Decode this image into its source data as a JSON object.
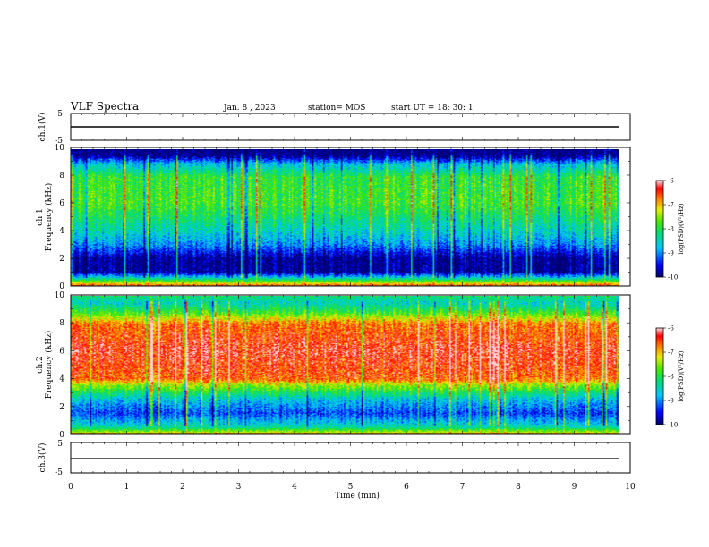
{
  "header": {
    "title": "VLF Spectra",
    "date": "Jan. 8 , 2023",
    "station": "station= MOS",
    "start": "start UT = 18: 30: 1"
  },
  "chart_data": [
    {
      "type": "line",
      "ylabel": "ch.1(V)",
      "yticks": [
        "5",
        "-5"
      ],
      "ylim": [
        -5,
        5
      ],
      "xlim": [
        0,
        10
      ],
      "series": [
        {
          "values": [
            0,
            0
          ]
        }
      ]
    },
    {
      "type": "heatmap",
      "ylabel": "ch.1\nFrequency (kHz)",
      "ylim": [
        0,
        10
      ],
      "yticks": [
        "10",
        "8",
        "6",
        "4",
        "2",
        "0"
      ],
      "xlim": [
        0,
        10
      ],
      "data_end_min": 9.8,
      "colorbar": {
        "label": "log(PSD)(V²/Hz)",
        "range": [
          -10,
          -6
        ],
        "ticks": [
          "-6",
          "-7",
          "-8",
          "-9",
          "-10"
        ]
      },
      "band_profile": [
        {
          "freq_khz": 0.0,
          "level": -6.6
        },
        {
          "freq_khz": 0.4,
          "level": -8.0
        },
        {
          "freq_khz": 1.0,
          "level": -9.9
        },
        {
          "freq_khz": 2.0,
          "level": -9.9
        },
        {
          "freq_khz": 3.0,
          "level": -9.0
        },
        {
          "freq_khz": 4.0,
          "level": -8.5
        },
        {
          "freq_khz": 6.0,
          "level": -7.8
        },
        {
          "freq_khz": 8.0,
          "level": -7.9
        },
        {
          "freq_khz": 9.0,
          "level": -8.8
        },
        {
          "freq_khz": 9.5,
          "level": -9.9
        },
        {
          "freq_khz": 10.0,
          "level": -10.0
        }
      ]
    },
    {
      "type": "heatmap",
      "ylabel": "ch.2\nFrequency (kHz)",
      "ylim": [
        0,
        10
      ],
      "yticks": [
        "10",
        "8",
        "6",
        "4",
        "2",
        "0"
      ],
      "xlim": [
        0,
        10
      ],
      "data_end_min": 9.8,
      "colorbar": {
        "label": "log(PSD)(V²/Hz)",
        "range": [
          -10,
          -6
        ],
        "ticks": [
          "-6",
          "-7",
          "-8",
          "-9",
          "-10"
        ]
      },
      "band_profile": [
        {
          "freq_khz": 0.0,
          "level": -7.0
        },
        {
          "freq_khz": 0.5,
          "level": -8.4
        },
        {
          "freq_khz": 1.5,
          "level": -9.3
        },
        {
          "freq_khz": 2.5,
          "level": -8.7
        },
        {
          "freq_khz": 3.5,
          "level": -7.5
        },
        {
          "freq_khz": 4.0,
          "level": -6.6
        },
        {
          "freq_khz": 6.0,
          "level": -6.3
        },
        {
          "freq_khz": 8.0,
          "level": -6.7
        },
        {
          "freq_khz": 8.8,
          "level": -7.8
        },
        {
          "freq_khz": 9.5,
          "level": -8.5
        },
        {
          "freq_khz": 10.0,
          "level": -8.2
        }
      ]
    },
    {
      "type": "line",
      "ylabel": "ch.3(V)",
      "yticks": [
        "5",
        "-5"
      ],
      "ylim": [
        -5,
        5
      ],
      "xlim": [
        0,
        10
      ],
      "xlabel": "Time (min)",
      "xticks": [
        "0",
        "1",
        "2",
        "3",
        "4",
        "5",
        "6",
        "7",
        "8",
        "9",
        "10"
      ],
      "series": [
        {
          "values": [
            -0.3,
            -0.3
          ]
        }
      ]
    }
  ]
}
